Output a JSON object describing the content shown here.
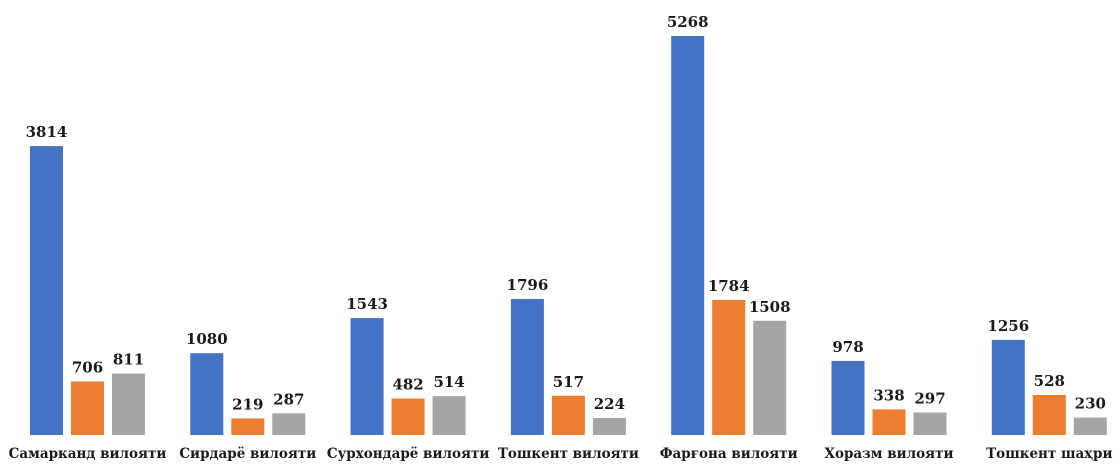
{
  "chart_data": {
    "type": "bar",
    "title": "",
    "xlabel": "",
    "ylabel": "",
    "ylim": [
      0,
      5268
    ],
    "grid": false,
    "legend": "none",
    "categories": [
      "Самарканд вилояти",
      "Сирдарё вилояти",
      "Сурхондарё вилояти",
      "Тошкент вилояти",
      "Фарғона вилояти",
      "Хоразм вилояти",
      "Тошкент шаҳри"
    ],
    "series": [
      {
        "values": [
          3814,
          1080,
          1543,
          1796,
          5268,
          978,
          1256
        ]
      },
      {
        "values": [
          706,
          219,
          482,
          517,
          1784,
          338,
          528
        ]
      },
      {
        "values": [
          811,
          287,
          514,
          224,
          1508,
          297,
          230
        ]
      }
    ],
    "colors": [
      "#4472C4",
      "#ED7D31",
      "#A5A5A5"
    ]
  }
}
